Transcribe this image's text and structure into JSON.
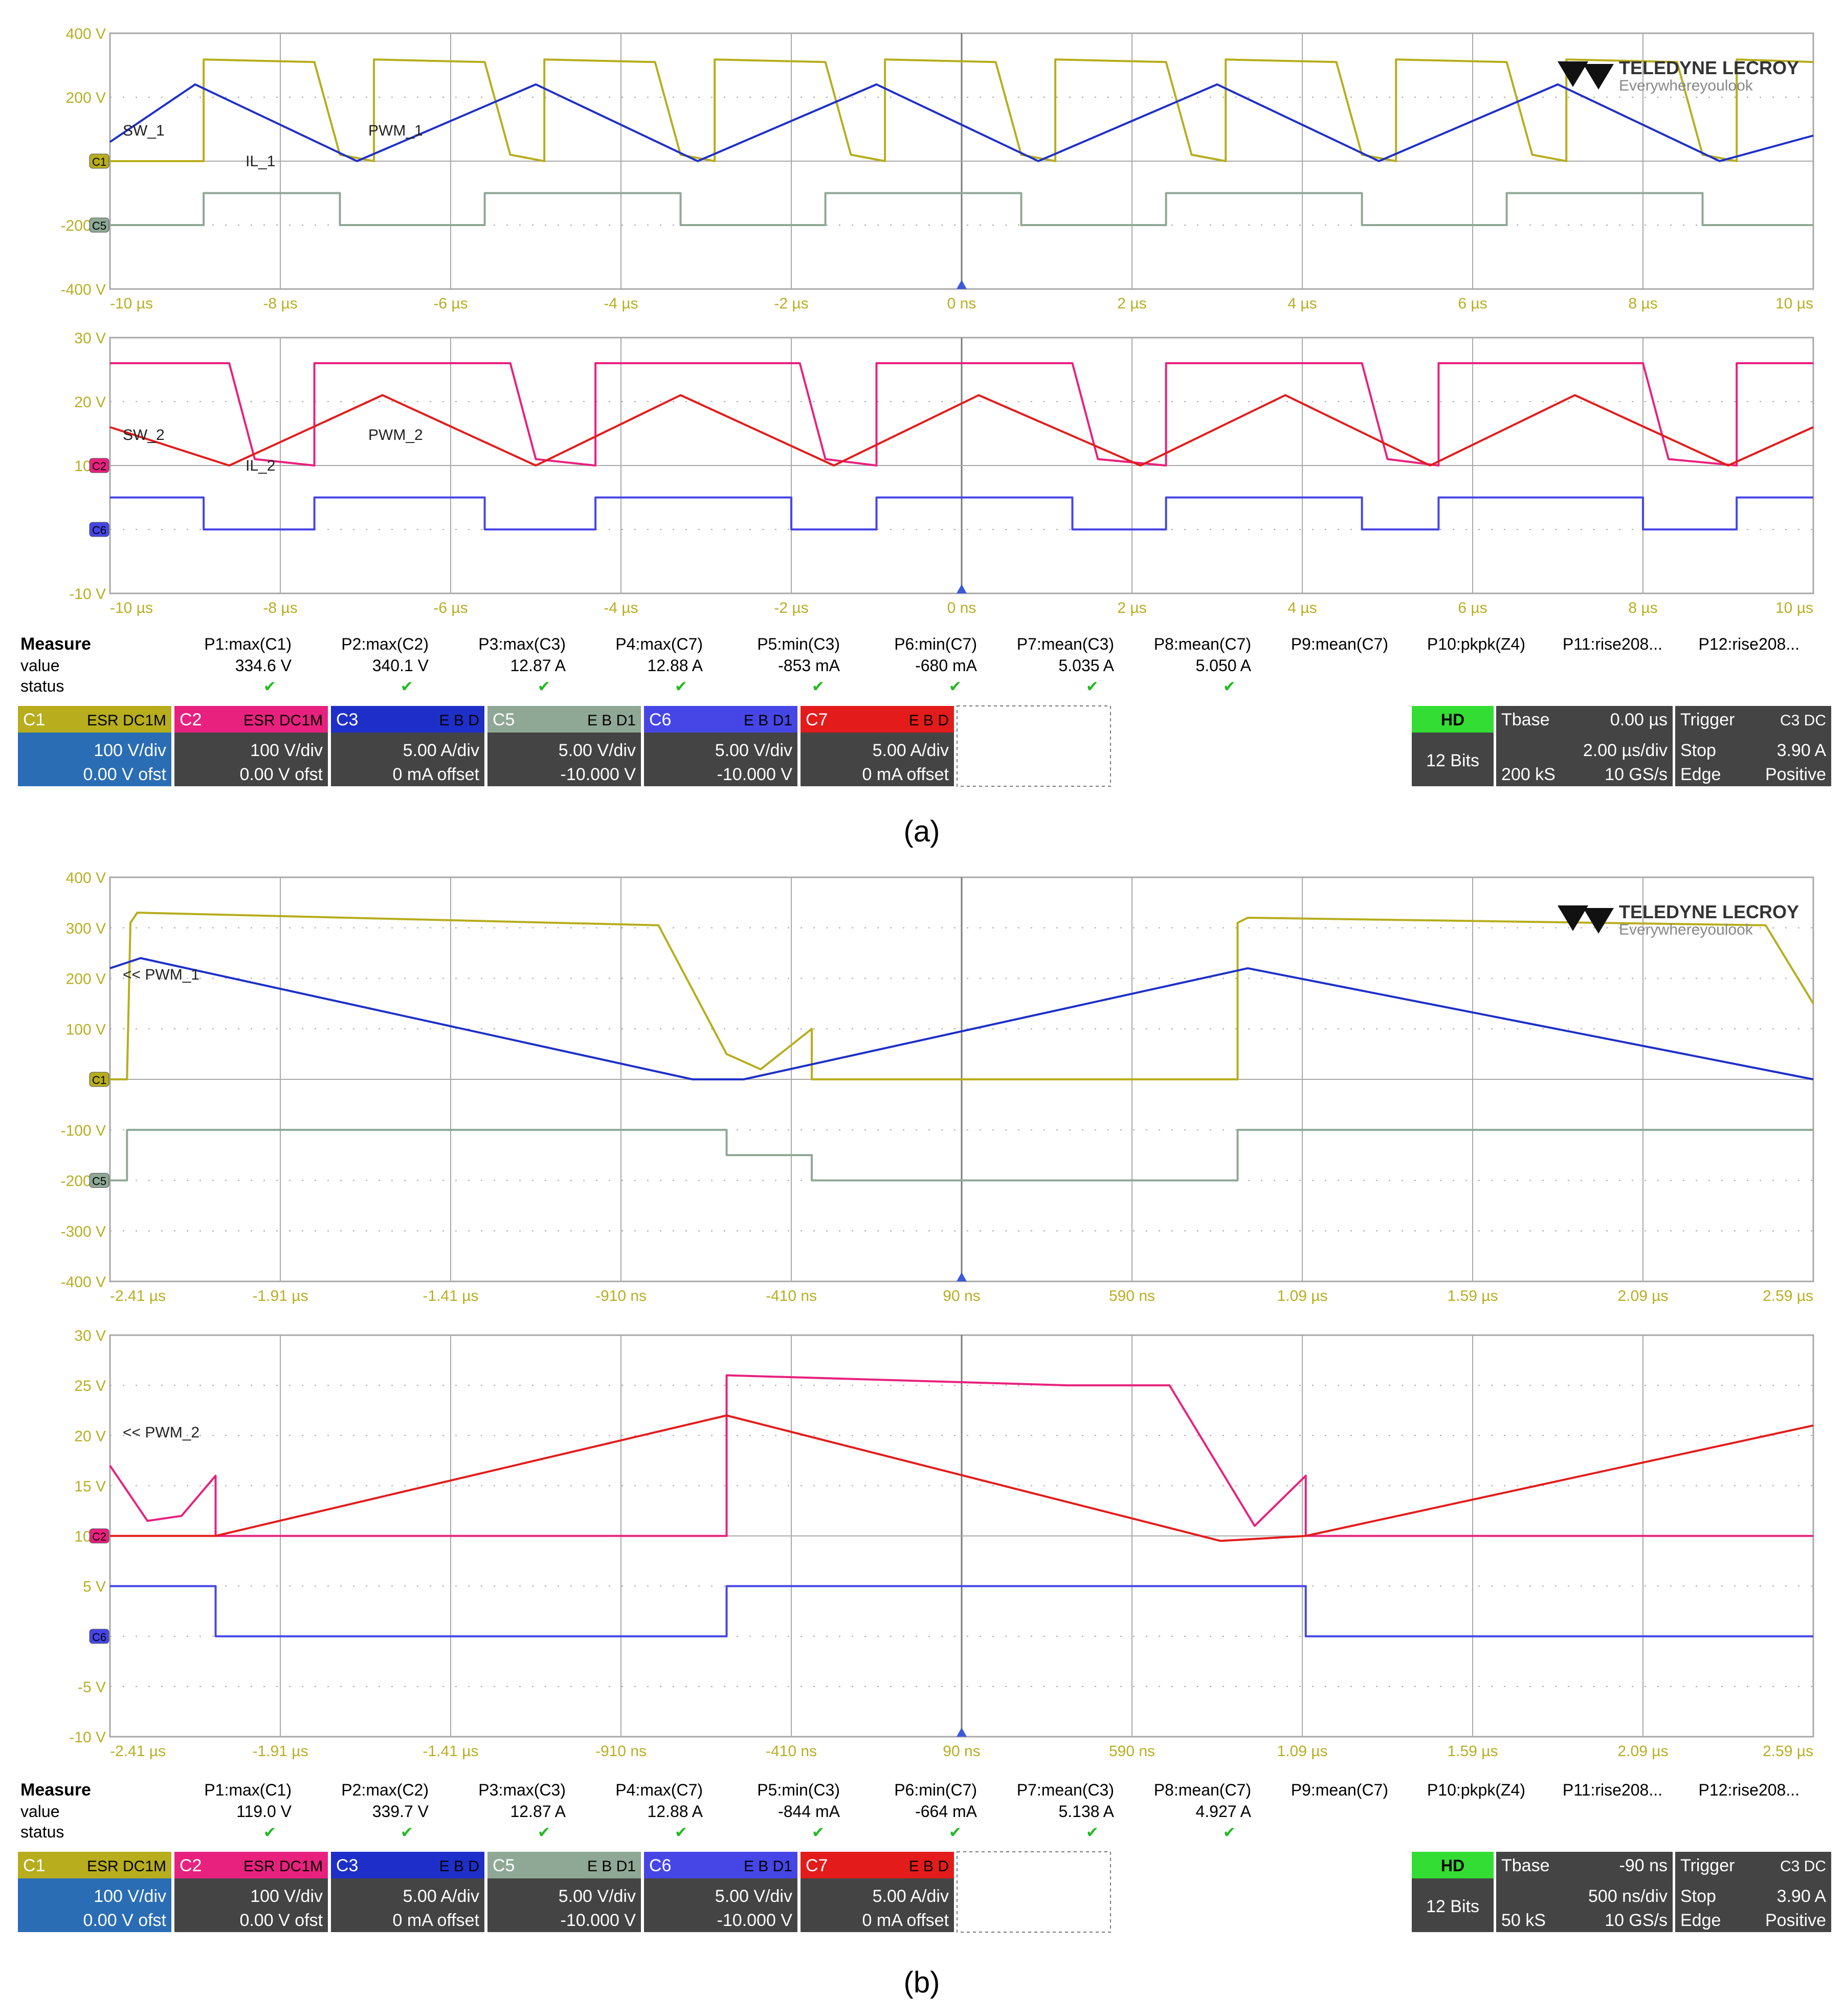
{
  "brand": {
    "name": "TELEDYNE",
    "name2": "LECROY",
    "tagline_a": "Everywhere",
    "tagline_b": "you",
    "tagline_c": "look"
  },
  "colors": {
    "grid": "#a8a8a8",
    "tick": "#b8ae22",
    "c1": "#b7ad1d",
    "c2": "#e8217e",
    "c3": "#1e2fc9",
    "c5": "#8fa895",
    "c6": "#4646e6",
    "c7": "#e41b1b",
    "measure_check": "#22bb22",
    "hd_green": "#33dd33"
  },
  "captions": [
    "(a)",
    "(b)"
  ],
  "measure": {
    "title": "Measure",
    "row_value": "value",
    "row_status": "status",
    "params": [
      "P1:max(C1)",
      "P2:max(C2)",
      "P3:max(C3)",
      "P4:max(C7)",
      "P5:min(C3)",
      "P6:min(C7)",
      "P7:mean(C3)",
      "P8:mean(C7)",
      "P9:mean(C7)",
      "P10:pkpk(Z4)",
      "P11:rise208...",
      "P12:rise208..."
    ]
  },
  "channel_headers": [
    {
      "name": "C1",
      "tags": [
        "ESR",
        "DC1M"
      ]
    },
    {
      "name": "C2",
      "tags": [
        "ESR",
        "DC1M"
      ]
    },
    {
      "name": "C3",
      "tags": [
        "E",
        "B",
        "D"
      ]
    },
    {
      "name": "C5",
      "tags": [
        "E",
        "B",
        "D1"
      ]
    },
    {
      "name": "C6",
      "tags": [
        "E",
        "B",
        "D1"
      ]
    },
    {
      "name": "C7",
      "tags": [
        "E",
        "B",
        "D"
      ]
    }
  ],
  "screens": [
    {
      "id": "a",
      "measure_values": [
        "334.6 V",
        "340.1 V",
        "12.87 A",
        "12.88 A",
        "-853 mA",
        "-680 mA",
        "5.035 A",
        "5.050 A",
        "",
        "",
        "",
        ""
      ],
      "channels": [
        {
          "scale": "100 V/div",
          "offset": "0.00 V ofst"
        },
        {
          "scale": "100 V/div",
          "offset": "0.00 V ofst"
        },
        {
          "scale": "5.00 A/div",
          "offset": "0 mA offset"
        },
        {
          "scale": "5.00 V/div",
          "offset": "-10.000 V"
        },
        {
          "scale": "5.00 V/div",
          "offset": "-10.000 V"
        },
        {
          "scale": "5.00 A/div",
          "offset": "0 mA offset"
        }
      ],
      "timebase": {
        "hd": "HD",
        "bits": "12 Bits",
        "label": "Tbase",
        "delay": "0.00 µs",
        "per_div": "2.00 µs/div",
        "samples": "200 kS",
        "rate": "10 GS/s"
      },
      "trigger": {
        "label": "Trigger",
        "src": "C3",
        "coupling": "DC",
        "mode": "Stop",
        "level": "3.90 A",
        "type": "Edge",
        "slope": "Positive"
      }
    },
    {
      "id": "b",
      "measure_values": [
        "119.0 V",
        "339.7 V",
        "12.87 A",
        "12.88 A",
        "-844 mA",
        "-664 mA",
        "5.138 A",
        "4.927 A",
        "",
        "",
        "",
        ""
      ],
      "channels": [
        {
          "scale": "100 V/div",
          "offset": "0.00 V ofst"
        },
        {
          "scale": "100 V/div",
          "offset": "0.00 V ofst"
        },
        {
          "scale": "5.00 A/div",
          "offset": "0 mA offset"
        },
        {
          "scale": "5.00 V/div",
          "offset": "-10.000 V"
        },
        {
          "scale": "5.00 V/div",
          "offset": "-10.000 V"
        },
        {
          "scale": "5.00 A/div",
          "offset": "0 mA offset"
        }
      ],
      "timebase": {
        "hd": "HD",
        "bits": "12 Bits",
        "label": "Tbase",
        "delay": "-90 ns",
        "per_div": "500 ns/div",
        "samples": "50 kS",
        "rate": "10 GS/s"
      },
      "trigger": {
        "label": "Trigger",
        "src": "C3",
        "coupling": "DC",
        "mode": "Stop",
        "level": "3.90 A",
        "type": "Edge",
        "slope": "Positive"
      }
    }
  ],
  "chart_data": [
    {
      "type": "line",
      "panel": "a-top",
      "xlim": [
        -10,
        10
      ],
      "ylim": [
        -400,
        400
      ],
      "xticks": [
        "-10 µs",
        "-8 µs",
        "-6 µs",
        "-4 µs",
        "-2 µs",
        "0 ns",
        "2 µs",
        "4 µs",
        "6 µs",
        "8 µs",
        "10 µs"
      ],
      "yticks": [
        "400 V",
        "200 V",
        "0",
        "-200 V",
        "-400 V"
      ],
      "trace_labels": [
        "SW_1",
        "IL_1",
        "PWM_1"
      ],
      "channel_markers": [
        "C1",
        "C5"
      ],
      "series": [
        {
          "name": "SW_1",
          "channel": "C1",
          "x": [
            -10,
            -8.9,
            -8.9,
            -7.6,
            -7.3,
            -6.9,
            -6.9,
            -5.6,
            -5.3,
            -4.9,
            -4.9,
            -3.6,
            -3.3,
            -2.9,
            -2.9,
            -1.6,
            -1.3,
            -0.9,
            -0.9,
            0.4,
            0.7,
            1.1,
            1.1,
            2.4,
            2.7,
            3.1,
            3.1,
            4.4,
            4.7,
            5.1,
            5.1,
            6.4,
            6.7,
            7.1,
            7.1,
            8.4,
            8.7,
            9.1,
            9.1,
            10
          ],
          "y": [
            0,
            0,
            318,
            310,
            20,
            0,
            318,
            310,
            20,
            0,
            318,
            310,
            20,
            0,
            318,
            310,
            20,
            0,
            318,
            310,
            20,
            0,
            318,
            310,
            20,
            0,
            318,
            310,
            20,
            0,
            318,
            310,
            20,
            0,
            318,
            310,
            20,
            0,
            318,
            310
          ]
        },
        {
          "name": "IL_1",
          "channel": "C3",
          "x": [
            -10,
            -9,
            -7.1,
            -5,
            -3.1,
            -1,
            0.9,
            3,
            4.9,
            7,
            8.9,
            10
          ],
          "y": [
            60,
            240,
            0,
            240,
            0,
            240,
            0,
            240,
            0,
            240,
            0,
            80
          ]
        },
        {
          "name": "PWM_1",
          "channel": "C5",
          "x": [
            -10,
            -8.9,
            -8.9,
            -7.3,
            -7.3,
            -5.6,
            -5.6,
            -3.3,
            -3.3,
            -1.6,
            -1.6,
            0.7,
            0.7,
            2.4,
            2.4,
            4.7,
            4.7,
            6.4,
            6.4,
            8.7,
            8.7,
            10
          ],
          "y": [
            -200,
            -200,
            -100,
            -100,
            -200,
            -200,
            -100,
            -100,
            -200,
            -200,
            -100,
            -100,
            -200,
            -200,
            -100,
            -100,
            -200,
            -200,
            -100,
            -100,
            -200,
            -200
          ]
        }
      ]
    },
    {
      "type": "line",
      "panel": "a-bottom",
      "xlim": [
        -10,
        10
      ],
      "ylim": [
        -10,
        30
      ],
      "xticks": [
        "-10 µs",
        "-8 µs",
        "-6 µs",
        "-4 µs",
        "-2 µs",
        "0 ns",
        "2 µs",
        "4 µs",
        "6 µs",
        "8 µs",
        "10 µs"
      ],
      "yticks": [
        "30 V",
        "20 V",
        "10 V",
        "0",
        "-10 V"
      ],
      "trace_labels": [
        "SW_2",
        "IL_2",
        "PWM_2"
      ],
      "channel_markers": [
        "C2",
        "C6"
      ],
      "series": [
        {
          "name": "SW_2",
          "channel": "C2",
          "x": [
            -10,
            -8.6,
            -8.3,
            -7.6,
            -7.6,
            -5.3,
            -5.0,
            -4.3,
            -4.3,
            -1.9,
            -1.6,
            -1.0,
            -1.0,
            1.3,
            1.6,
            2.4,
            2.4,
            4.7,
            5.0,
            5.6,
            5.6,
            8.0,
            8.3,
            9.1,
            9.1,
            10
          ],
          "y": [
            26,
            26,
            11,
            10,
            26,
            26,
            11,
            10,
            26,
            26,
            11,
            10,
            26,
            26,
            11,
            10,
            26,
            26,
            11,
            10,
            26,
            26,
            11,
            10,
            26,
            26
          ]
        },
        {
          "name": "IL_2",
          "channel": "C7",
          "x": [
            -10,
            -8.6,
            -6.8,
            -5.0,
            -3.3,
            -1.5,
            0.2,
            2.1,
            3.8,
            5.5,
            7.2,
            9.0,
            10
          ],
          "y": [
            16,
            10,
            21,
            10,
            21,
            10,
            21,
            10,
            21,
            10,
            21,
            10,
            16
          ]
        },
        {
          "name": "PWM_2",
          "channel": "C6",
          "x": [
            -10,
            -8.9,
            -8.9,
            -7.6,
            -7.6,
            -5.6,
            -5.6,
            -4.3,
            -4.3,
            -2.0,
            -2.0,
            -1.0,
            -1.0,
            1.3,
            1.3,
            2.4,
            2.4,
            4.7,
            4.7,
            5.6,
            5.6,
            8.0,
            8.0,
            9.1,
            9.1,
            10
          ],
          "y": [
            5,
            5,
            0,
            0,
            5,
            5,
            0,
            0,
            5,
            5,
            0,
            0,
            5,
            5,
            0,
            0,
            5,
            5,
            0,
            0,
            5,
            5,
            0,
            0,
            5,
            5
          ]
        }
      ]
    },
    {
      "type": "line",
      "panel": "b-top",
      "xlim": [
        -2.41,
        2.59
      ],
      "ylim": [
        -400,
        400
      ],
      "xticks": [
        "-2.41 µs",
        "-1.91 µs",
        "-1.41 µs",
        "-910 ns",
        "-410 ns",
        "90 ns",
        "590 ns",
        "1.09 µs",
        "1.59 µs",
        "2.09 µs",
        "2.59 µs"
      ],
      "yticks": [
        "400 V",
        "300 V",
        "200 V",
        "100 V",
        "0",
        "-100 V",
        "-200 V",
        "-300 V",
        "-400 V"
      ],
      "trace_labels": [
        "<< PWM_1"
      ],
      "channel_markers": [
        "C1",
        "C5"
      ],
      "series": [
        {
          "name": "",
          "channel": "C1",
          "x": [
            -2.41,
            -2.36,
            -2.35,
            -2.33,
            -0.8,
            -0.6,
            -0.5,
            -0.35,
            -0.35,
            0.9,
            0.9,
            0.93,
            2.45,
            2.59
          ],
          "y": [
            0,
            0,
            310,
            330,
            305,
            50,
            20,
            100,
            0,
            0,
            310,
            320,
            305,
            150
          ]
        },
        {
          "name": "",
          "channel": "C3",
          "x": [
            -2.41,
            -2.32,
            -0.7,
            -0.55,
            0.93,
            2.59
          ],
          "y": [
            220,
            240,
            0,
            0,
            220,
            0
          ]
        },
        {
          "name": "",
          "channel": "C5",
          "x": [
            -2.41,
            -2.36,
            -2.36,
            -0.6,
            -0.6,
            -0.35,
            -0.35,
            0.9,
            0.9,
            1.15,
            1.15,
            2.59
          ],
          "y": [
            -200,
            -200,
            -100,
            -100,
            -150,
            -150,
            -200,
            -200,
            -100,
            -100,
            -100,
            -100
          ]
        }
      ]
    },
    {
      "type": "line",
      "panel": "b-bottom",
      "xlim": [
        -2.41,
        2.59
      ],
      "ylim": [
        -10,
        30
      ],
      "xticks": [
        "-2.41 µs",
        "-1.91 µs",
        "-1.41 µs",
        "-910 ns",
        "-410 ns",
        "90 ns",
        "590 ns",
        "1.09 µs",
        "1.59 µs",
        "2.09 µs",
        "2.59 µs"
      ],
      "yticks": [
        "30 V",
        "25 V",
        "20 V",
        "15 V",
        "10 V",
        "5 V",
        "0",
        "-5 V",
        "-10 V"
      ],
      "trace_labels": [
        "<< PWM_2"
      ],
      "channel_markers": [
        "C2",
        "C6"
      ],
      "series": [
        {
          "name": "",
          "channel": "C2",
          "x": [
            -2.41,
            -2.3,
            -2.2,
            -2.1,
            -2.1,
            -0.6,
            -0.6,
            0.4,
            0.7,
            0.95,
            1.1,
            1.1,
            2.59
          ],
          "y": [
            17,
            11.5,
            12,
            16,
            10,
            10,
            26,
            25,
            25,
            11,
            16,
            10,
            10
          ]
        },
        {
          "name": "",
          "channel": "C7",
          "x": [
            -2.41,
            -2.1,
            -0.6,
            0.85,
            1.1,
            2.59
          ],
          "y": [
            10,
            10,
            22,
            9.5,
            10,
            21
          ]
        },
        {
          "name": "",
          "channel": "C6",
          "x": [
            -2.41,
            -2.1,
            -2.1,
            -0.6,
            -0.6,
            -0.4,
            -0.4,
            0.9,
            0.9,
            1.1,
            1.1,
            2.59
          ],
          "y": [
            5,
            5,
            0,
            0,
            5,
            5,
            5,
            5,
            5,
            5,
            0,
            0
          ]
        }
      ]
    }
  ]
}
